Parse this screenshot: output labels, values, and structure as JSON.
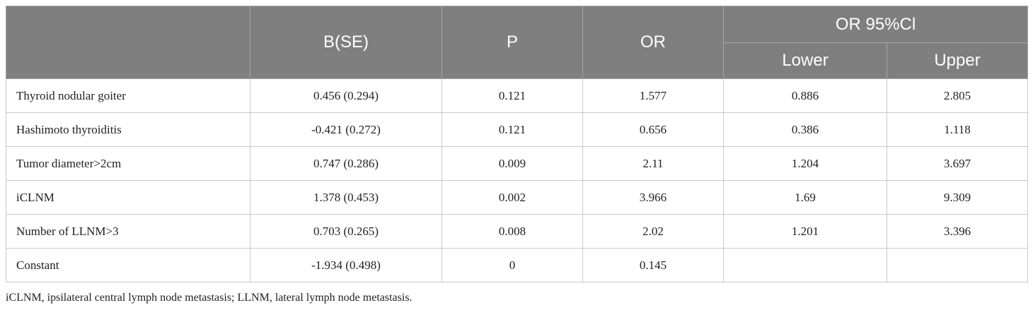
{
  "table": {
    "headers": {
      "variable": "",
      "b_se": "B(SE)",
      "p": "P",
      "or": "OR",
      "ci": "OR 95%Cl",
      "lower": "Lower",
      "upper": "Upper"
    },
    "rows": [
      {
        "variable": "Thyroid nodular goiter",
        "b_se": "0.456 (0.294)",
        "p": "0.121",
        "or": "1.577",
        "lower": "0.886",
        "upper": "2.805"
      },
      {
        "variable": "Hashimoto thyroiditis",
        "b_se": "-0.421 (0.272)",
        "p": "0.121",
        "or": "0.656",
        "lower": "0.386",
        "upper": "1.118"
      },
      {
        "variable": "Tumor diameter>2cm",
        "b_se": "0.747 (0.286)",
        "p": "0.009",
        "or": "2.11",
        "lower": "1.204",
        "upper": "3.697"
      },
      {
        "variable": "iCLNM",
        "b_se": "1.378 (0.453)",
        "p": "0.002",
        "or": "3.966",
        "lower": "1.69",
        "upper": "9.309"
      },
      {
        "variable": "Number of LLNM>3",
        "b_se": "0.703 (0.265)",
        "p": "0.008",
        "or": "2.02",
        "lower": "1.201",
        "upper": "3.396"
      },
      {
        "variable": "Constant",
        "b_se": "-1.934 (0.498)",
        "p": "0",
        "or": "0.145",
        "lower": "",
        "upper": ""
      }
    ]
  },
  "footnote": "iCLNM, ipsilateral central lymph node metastasis; LLNM, lateral lymph node metastasis.",
  "colors": {
    "header_bg": "#7f7f7f",
    "header_text": "#ffffff",
    "grid": "#c9c9c9"
  }
}
